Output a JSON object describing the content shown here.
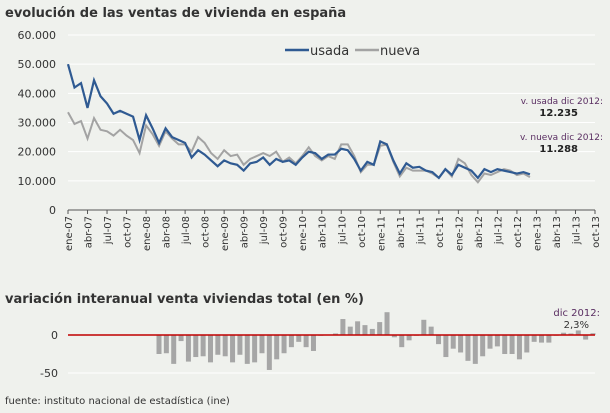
{
  "chart_data": [
    {
      "type": "line",
      "title": "evolución de las ventas de vivienda en españa",
      "ylim": [
        0,
        60000
      ],
      "yticks": [
        "0",
        "10.000",
        "20.000",
        "30.000",
        "40.000",
        "50.000",
        "60.000"
      ],
      "ytick_values": [
        0,
        10000,
        20000,
        30000,
        40000,
        50000,
        60000
      ],
      "x_start": "ene-07",
      "x_end": "oct-13",
      "xticks": [
        "ene-07",
        "abr-07",
        "jul-07",
        "oct-07",
        "ene-08",
        "abr-08",
        "jul-08",
        "oct-08",
        "ene-09",
        "abr-09",
        "jul-09",
        "oct-09",
        "ene-10",
        "abr-10",
        "jul-10",
        "oct-10",
        "ene-11",
        "abr-11",
        "jul-11",
        "oct-11",
        "ene-12",
        "abr-12",
        "jul-12",
        "oct-12",
        "ene-13",
        "abr-13",
        "jul-13",
        "oct-13"
      ],
      "grid": true,
      "legend": "top-center",
      "series": [
        {
          "name": "usada",
          "color": "#2f5a92",
          "values": [
            50000,
            42000,
            43500,
            35000,
            44500,
            39000,
            36500,
            33000,
            34000,
            33000,
            32000,
            24000,
            32500,
            28000,
            23000,
            28000,
            25000,
            24000,
            23000,
            18000,
            20500,
            19000,
            17000,
            15000,
            17000,
            16000,
            15500,
            13500,
            16000,
            16500,
            18000,
            15500,
            17500,
            16500,
            17000,
            15500,
            18000,
            20000,
            19500,
            17500,
            19000,
            19000,
            21000,
            20500,
            17500,
            13500,
            16500,
            15500,
            23500,
            22500,
            17000,
            12500,
            16000,
            14500,
            14800,
            13500,
            13000,
            11000,
            14000,
            12000,
            15500,
            14500,
            13500,
            11000,
            14000,
            13000,
            14000,
            13500,
            13000,
            12500,
            13000,
            12235
          ]
        },
        {
          "name": "nueva",
          "color": "#a3a3a3",
          "values": [
            33500,
            29500,
            30500,
            24500,
            31500,
            27500,
            27000,
            25500,
            27500,
            25500,
            24000,
            19500,
            29000,
            26000,
            22000,
            27000,
            24500,
            22500,
            22500,
            20000,
            25000,
            23000,
            19500,
            17500,
            20500,
            18500,
            19000,
            15500,
            17500,
            18500,
            19500,
            18500,
            20000,
            16500,
            18000,
            16000,
            18500,
            21500,
            18500,
            17000,
            18500,
            17500,
            22500,
            22500,
            18500,
            13000,
            15500,
            15500,
            22000,
            22500,
            16500,
            11500,
            14500,
            13500,
            13500,
            13500,
            12500,
            11000,
            14000,
            11500,
            17500,
            16000,
            12000,
            9500,
            12500,
            12000,
            13000,
            14000,
            13500,
            12000,
            12500,
            11288
          ]
        }
      ],
      "annotations": [
        {
          "label": "v. usada dic 2012:",
          "value": "12.235"
        },
        {
          "label": "v. nueva dic 2012:",
          "value": "11.288"
        }
      ]
    },
    {
      "type": "bar",
      "title": "variación interanual venta viviendas total (en %)",
      "yticks": [
        "0",
        "-50"
      ],
      "ytick_values": [
        0,
        -50
      ],
      "x_start": "ene-08",
      "x_end": "dic-12",
      "bar_color": "#a6a6a6",
      "zero_line_color": "#c00000",
      "values": [
        -25,
        -24,
        -38,
        -8,
        -35,
        -29,
        -28,
        -36,
        -26,
        -28,
        -36,
        -26,
        -38,
        -36,
        -24,
        -46,
        -32,
        -24,
        -16,
        -9,
        -16,
        -21,
        -1,
        0,
        2,
        21,
        11,
        18,
        13,
        8,
        17,
        30,
        -3,
        -16,
        -7,
        -1,
        20,
        11,
        -12,
        -29,
        -18,
        -23,
        -34,
        -38,
        -28,
        -18,
        -15,
        -25,
        -25,
        -32,
        -23,
        -9,
        -10,
        -10,
        -1,
        3,
        2,
        6,
        -6,
        2.3
      ],
      "annotation": {
        "label": "dic 2012:",
        "value": "2,3%"
      }
    }
  ],
  "source": "fuente:  instituto  nacional  de  estadística  (ine)"
}
